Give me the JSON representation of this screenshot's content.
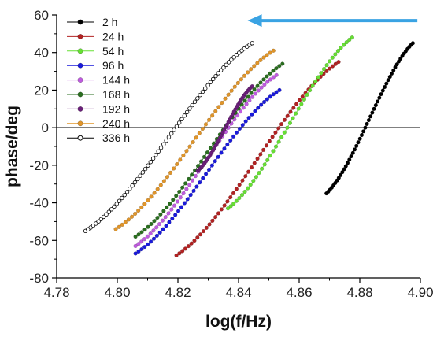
{
  "chart_data": {
    "type": "scatter",
    "xlabel": "log(f/Hz)",
    "ylabel": "phase/deg",
    "xlim": [
      4.78,
      4.9
    ],
    "ylim": [
      -80,
      60
    ],
    "x_ticks": [
      "4.78",
      "4.80",
      "4.82",
      "4.84",
      "4.86",
      "4.88",
      "4.90"
    ],
    "y_ticks": [
      "-80",
      "-60",
      "-40",
      "-20",
      "0",
      "20",
      "40",
      "60"
    ],
    "zero_line": true,
    "grid": false,
    "legend_position": "top-left",
    "annotation": {
      "type": "arrow",
      "direction": "left",
      "color": "#3aa3e3",
      "from": [
        4.899,
        57
      ],
      "to": [
        4.843,
        57
      ]
    },
    "series": [
      {
        "name": "2 h",
        "color": "#000000",
        "marker": "filled",
        "x_start": 4.869,
        "x_end": 4.8975,
        "y_start": -35,
        "y_end": 45,
        "points": 50
      },
      {
        "name": "24 h",
        "color": "#b22222",
        "marker": "filled",
        "x_start": 4.8195,
        "x_end": 4.873,
        "y_start": -68,
        "y_end": 35,
        "points": 55
      },
      {
        "name": "54 h",
        "color": "#66e033",
        "marker": "filled",
        "x_start": 4.8365,
        "x_end": 4.8775,
        "y_start": -43,
        "y_end": 48,
        "points": 45
      },
      {
        "name": "96 h",
        "color": "#1a1adb",
        "marker": "filled",
        "x_start": 4.806,
        "x_end": 4.8535,
        "y_start": -67,
        "y_end": 20,
        "points": 48
      },
      {
        "name": "144 h",
        "color": "#c05be0",
        "marker": "filled",
        "x_start": 4.806,
        "x_end": 4.8525,
        "y_start": -63,
        "y_end": 28,
        "points": 48
      },
      {
        "name": "168 h",
        "color": "#2a6e1f",
        "marker": "filled",
        "x_start": 4.806,
        "x_end": 4.8545,
        "y_start": -58,
        "y_end": 34,
        "points": 48
      },
      {
        "name": "192 h",
        "color": "#6b1f7a",
        "marker": "filled",
        "x_start": 4.8265,
        "x_end": 4.8445,
        "y_start": -23,
        "y_end": 22,
        "points": 40
      },
      {
        "name": "240 h",
        "color": "#e0952a",
        "marker": "filled",
        "x_start": 4.7995,
        "x_end": 4.8515,
        "y_start": -54,
        "y_end": 41,
        "points": 50
      },
      {
        "name": "336 h",
        "color": "#000000",
        "marker": "open",
        "x_start": 4.7895,
        "x_end": 4.8445,
        "y_start": -55,
        "y_end": 45,
        "points": 65
      }
    ]
  }
}
